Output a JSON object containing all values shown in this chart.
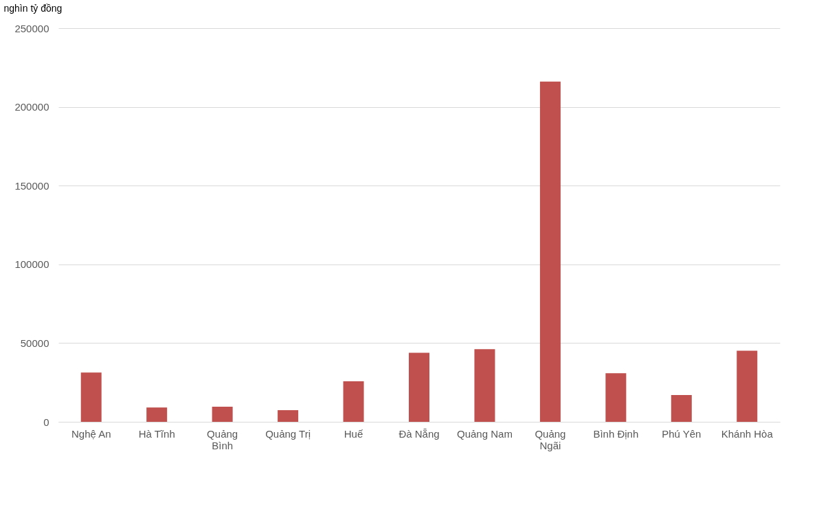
{
  "chart_data": {
    "type": "bar",
    "ylabel": "nghìn tỷ đồng",
    "categories": [
      "Nghệ An",
      "Hà Tĩnh",
      "Quảng Bình",
      "Quảng Trị",
      "Huế",
      "Đà Nẵng",
      "Quảng Nam",
      "Quảng Ngãi",
      "Bình Định",
      "Phú Yên",
      "Khánh Hòa"
    ],
    "values": [
      31300,
      9100,
      9600,
      7400,
      25700,
      43900,
      46100,
      216100,
      30900,
      17000,
      45200
    ],
    "color": "#c0504d",
    "ylim": [
      0,
      250000
    ],
    "yticks": [
      0,
      50000,
      100000,
      150000,
      200000,
      250000
    ],
    "grid": "y"
  }
}
